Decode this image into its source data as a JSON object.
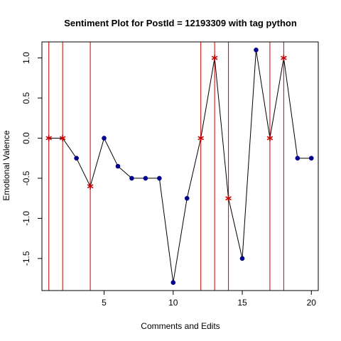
{
  "chart_data": {
    "type": "line",
    "title": "Sentiment Plot for PostId =  12193309  with tag  python",
    "xlabel": "Comments and Edits",
    "ylabel": "Emotional Valence",
    "xlim": [
      0.5,
      20.5
    ],
    "ylim": [
      -1.9,
      1.2
    ],
    "x_ticks": [
      5,
      10,
      15,
      20
    ],
    "y_ticks": [
      -1.5,
      -1.0,
      -0.5,
      0.0,
      0.5,
      1.0
    ],
    "y_tick_labels": [
      "-1.5",
      "-1.0",
      "-0.5",
      "0.0",
      "0.5",
      "1.0"
    ],
    "series": [
      {
        "x": [
          1,
          2,
          3,
          4,
          5,
          6,
          7,
          8,
          9,
          10,
          11,
          12,
          13,
          14,
          15,
          16,
          17,
          18,
          19,
          20
        ],
        "values": [
          0,
          0,
          -0.25,
          -0.6,
          0,
          -0.35,
          -0.5,
          -0.5,
          -0.5,
          -1.8,
          -0.75,
          0,
          1.0,
          -0.75,
          -1.5,
          1.1,
          0,
          1.0,
          -0.25,
          -0.25
        ]
      }
    ],
    "highlighted_x": [
      1,
      2,
      4,
      12,
      13,
      14,
      17,
      18
    ],
    "grid": false,
    "colors": {
      "line": "#000000",
      "point": "#00008B",
      "highlight_line": "#CC0000",
      "highlight_marker": "#CC0000"
    }
  }
}
